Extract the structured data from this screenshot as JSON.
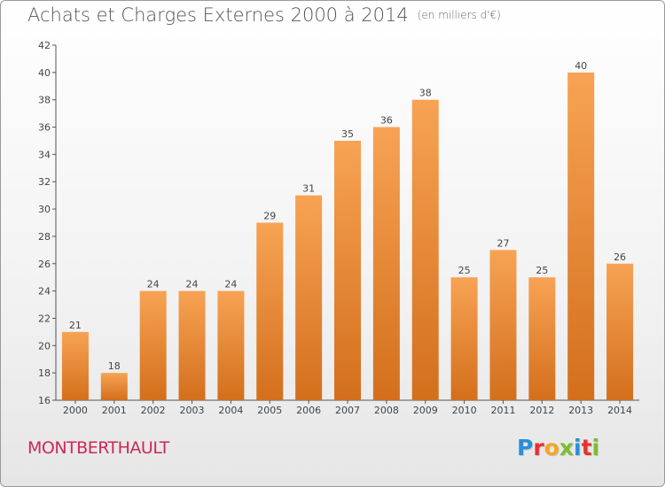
{
  "title": "Achats et Charges Externes 2000 à 2014",
  "subtitle": "(en milliers d'€)",
  "place": "MONTBERTHAULT",
  "logo": {
    "letters": [
      "P",
      "r",
      "o",
      "x",
      "i",
      "t",
      "i"
    ],
    "colors": [
      "#2a8fd8",
      "#e8312f",
      "#f5a623",
      "#7bbd2f",
      "#2a8fd8",
      "#e8312f",
      "#7bbd2f"
    ]
  },
  "colors": {
    "bar_top": "#f7a354",
    "bar_bottom": "#d36f1c",
    "axis": "#555555",
    "grid": "#d8d8d8"
  },
  "chart_data": {
    "type": "bar",
    "categories": [
      "2000",
      "2001",
      "2002",
      "2003",
      "2004",
      "2005",
      "2006",
      "2007",
      "2008",
      "2009",
      "2010",
      "2011",
      "2012",
      "2013",
      "2014"
    ],
    "values": [
      21,
      18,
      24,
      24,
      24,
      29,
      31,
      35,
      36,
      38,
      25,
      27,
      25,
      40,
      26
    ],
    "ylim": [
      16,
      42
    ],
    "yticks": [
      16,
      18,
      20,
      22,
      24,
      26,
      28,
      30,
      32,
      34,
      36,
      38,
      40,
      42
    ],
    "data_labels": true,
    "grid": false
  }
}
